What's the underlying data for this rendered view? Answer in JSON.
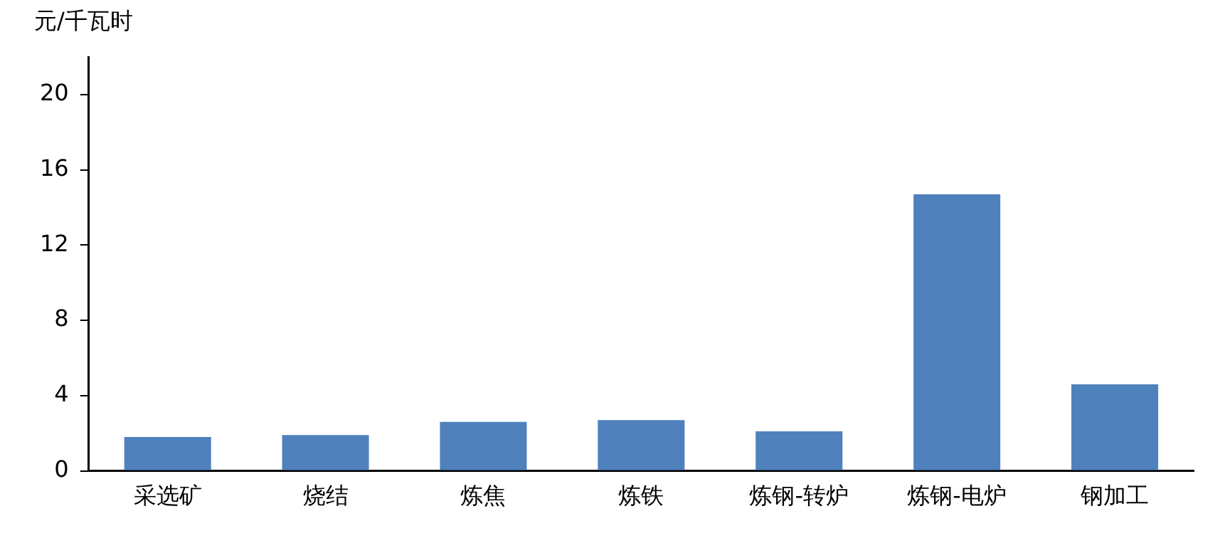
{
  "chart_data": {
    "type": "bar",
    "ylabel": "元/千瓦时",
    "categories": [
      "采选矿",
      "烧结",
      "炼焦",
      "炼铁",
      "炼钢-转炉",
      "炼钢-电炉",
      "钢加工"
    ],
    "values": [
      1.8,
      1.9,
      2.6,
      2.7,
      2.1,
      14.7,
      4.6
    ],
    "color": "#4f81bd",
    "ylim": [
      0,
      22
    ],
    "yticks": [
      0,
      4,
      8,
      12,
      16,
      20
    ],
    "grid": false,
    "legend": false
  }
}
